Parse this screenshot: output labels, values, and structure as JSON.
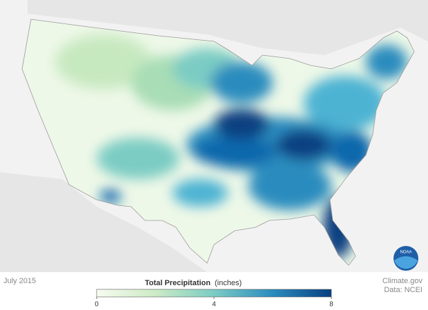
{
  "map": {
    "date": "July 2015",
    "legend": {
      "title": "Total Precipitation",
      "unit": "(inches)",
      "range": [
        0,
        8
      ],
      "ticks": [
        0,
        4,
        8
      ],
      "colors": [
        "#f7fcf0",
        "#ccebc5",
        "#7bccc4",
        "#2b8cbe",
        "#084081"
      ]
    }
  },
  "credits": {
    "source": "Climate.gov",
    "data": "Data: NCEI"
  },
  "logo": "NOAA"
}
